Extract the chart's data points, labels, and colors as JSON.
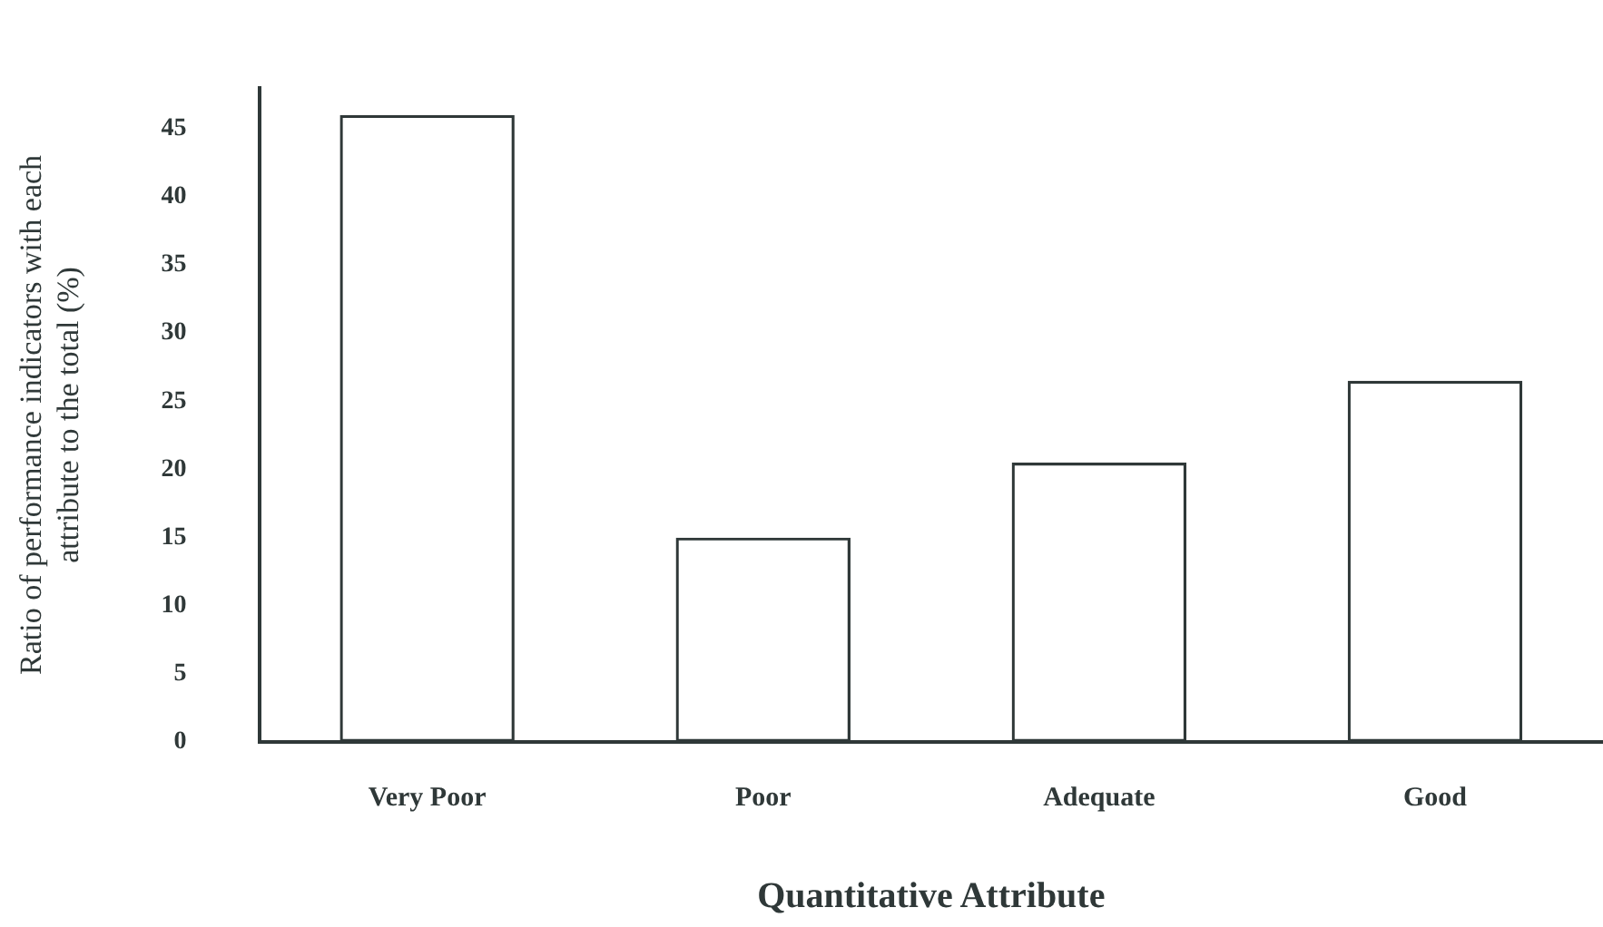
{
  "chart_data": {
    "type": "bar",
    "xlabel": "Quantitative Attribute",
    "ylabel": "Ratio of performance indicators with each attribute to the total (%)",
    "categories": [
      "Very Poor",
      "Poor",
      "Adequate",
      "Good"
    ],
    "values": [
      46,
      15,
      20.5,
      26.5
    ],
    "color": "#2f3838",
    "ylim": [
      0,
      48
    ],
    "yticks": [
      0,
      5,
      10,
      15,
      20,
      25,
      30,
      35,
      40,
      45
    ],
    "grid": false,
    "legend": false
  }
}
